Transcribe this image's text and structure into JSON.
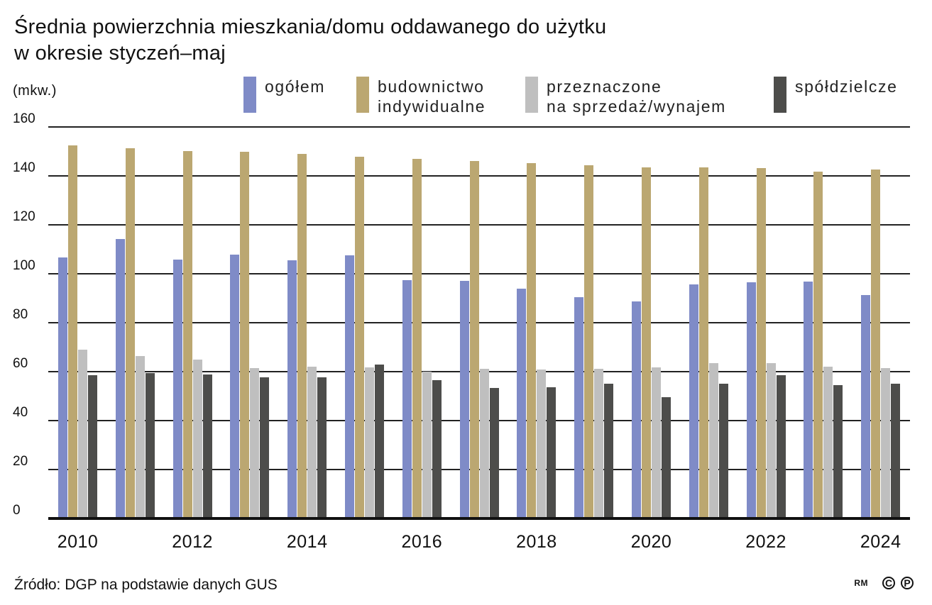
{
  "title": {
    "line1": "Średnia powierzchnia mieszkania/domu oddawanego do użytku",
    "line2": "w okresie styczeń–maj"
  },
  "unit": "(mkw.)",
  "legend": [
    {
      "line1": "ogółem",
      "line2": "",
      "color": "#7f8bc7"
    },
    {
      "line1": "budownictwo",
      "line2": "indywidualne",
      "color": "#bba771"
    },
    {
      "line1": "przeznaczone",
      "line2": "na sprzedaż/wynajem",
      "color": "#bfbfbf"
    },
    {
      "line1": "spółdzielcze",
      "line2": "",
      "color": "#4d4d4b"
    }
  ],
  "y_ticks": [
    "0",
    "20",
    "40",
    "60",
    "80",
    "100",
    "120",
    "140",
    "160"
  ],
  "x_ticks": [
    "2010",
    "2012",
    "2014",
    "2016",
    "2018",
    "2020",
    "2022",
    "2024"
  ],
  "source": "Źródło: DGP na podstawie danych GUS",
  "credit": {
    "initials": "RM",
    "copyright": "C",
    "p": "P"
  },
  "chart_data": {
    "type": "bar",
    "title": "Średnia powierzchnia mieszkania/domu oddawanego do użytku w okresie styczeń–maj",
    "xlabel": "",
    "ylabel": "(mkw.)",
    "ylim": [
      0,
      160
    ],
    "grid": true,
    "legend_position": "top",
    "categories": [
      "2010",
      "2011",
      "2012",
      "2013",
      "2014",
      "2015",
      "2016",
      "2017",
      "2018",
      "2019",
      "2020",
      "2021",
      "2022",
      "2023",
      "2024"
    ],
    "series": [
      {
        "name": "ogółem",
        "color": "#7f8bc7",
        "values": [
          106.8,
          114.2,
          105.8,
          107.8,
          105.4,
          107.6,
          97.4,
          97.0,
          93.9,
          90.3,
          88.7,
          95.6,
          96.6,
          96.8,
          91.3
        ]
      },
      {
        "name": "budownictwo indywidualne",
        "color": "#bba771",
        "values": [
          152.5,
          151.3,
          150.1,
          150.0,
          149.0,
          147.8,
          147.0,
          146.0,
          145.3,
          144.4,
          143.5,
          143.5,
          143.1,
          141.7,
          142.6
        ]
      },
      {
        "name": "przeznaczone na sprzedaż/wynajem",
        "color": "#bfbfbf",
        "values": [
          69.1,
          66.5,
          64.8,
          61.4,
          61.9,
          61.7,
          60.0,
          61.2,
          60.8,
          61.2,
          61.7,
          63.5,
          63.6,
          62.0,
          61.5
        ]
      },
      {
        "name": "spółdzielcze",
        "color": "#4d4d4b",
        "values": [
          58.5,
          59.4,
          58.8,
          57.6,
          57.6,
          62.8,
          56.5,
          53.3,
          53.6,
          55.0,
          49.7,
          55.1,
          58.6,
          54.4,
          55.2
        ]
      }
    ]
  }
}
